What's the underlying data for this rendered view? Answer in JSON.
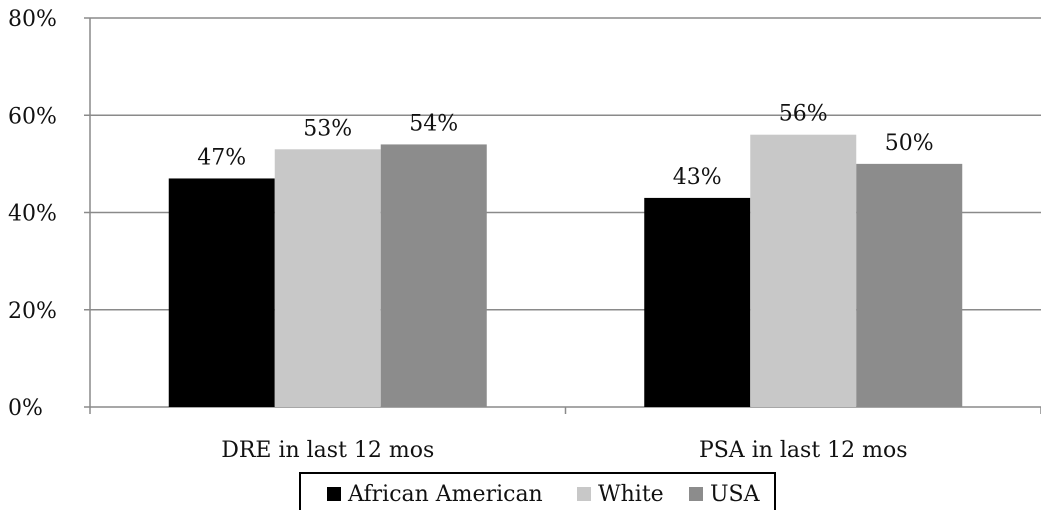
{
  "chart_data": {
    "type": "bar",
    "categories": [
      "DRE in last 12 mos",
      "PSA in last 12 mos"
    ],
    "series": [
      {
        "name": "African American",
        "values": [
          47,
          43
        ],
        "labels": [
          "47%",
          "43%"
        ],
        "color": "#000000"
      },
      {
        "name": "White",
        "values": [
          53,
          56
        ],
        "labels": [
          "53%",
          "56%"
        ],
        "color": "#c8c8c8"
      },
      {
        "name": "USA",
        "values": [
          54,
          50
        ],
        "labels": [
          "54%",
          "50%"
        ],
        "color": "#8c8c8c"
      }
    ],
    "yticks": [
      "0%",
      "20%",
      "40%",
      "60%",
      "80%"
    ],
    "ytick_values": [
      0,
      20,
      40,
      60,
      80
    ],
    "ylim": [
      0,
      80
    ],
    "grid": true,
    "legend_position": "bottom",
    "title": "",
    "xlabel": "",
    "ylabel": ""
  }
}
